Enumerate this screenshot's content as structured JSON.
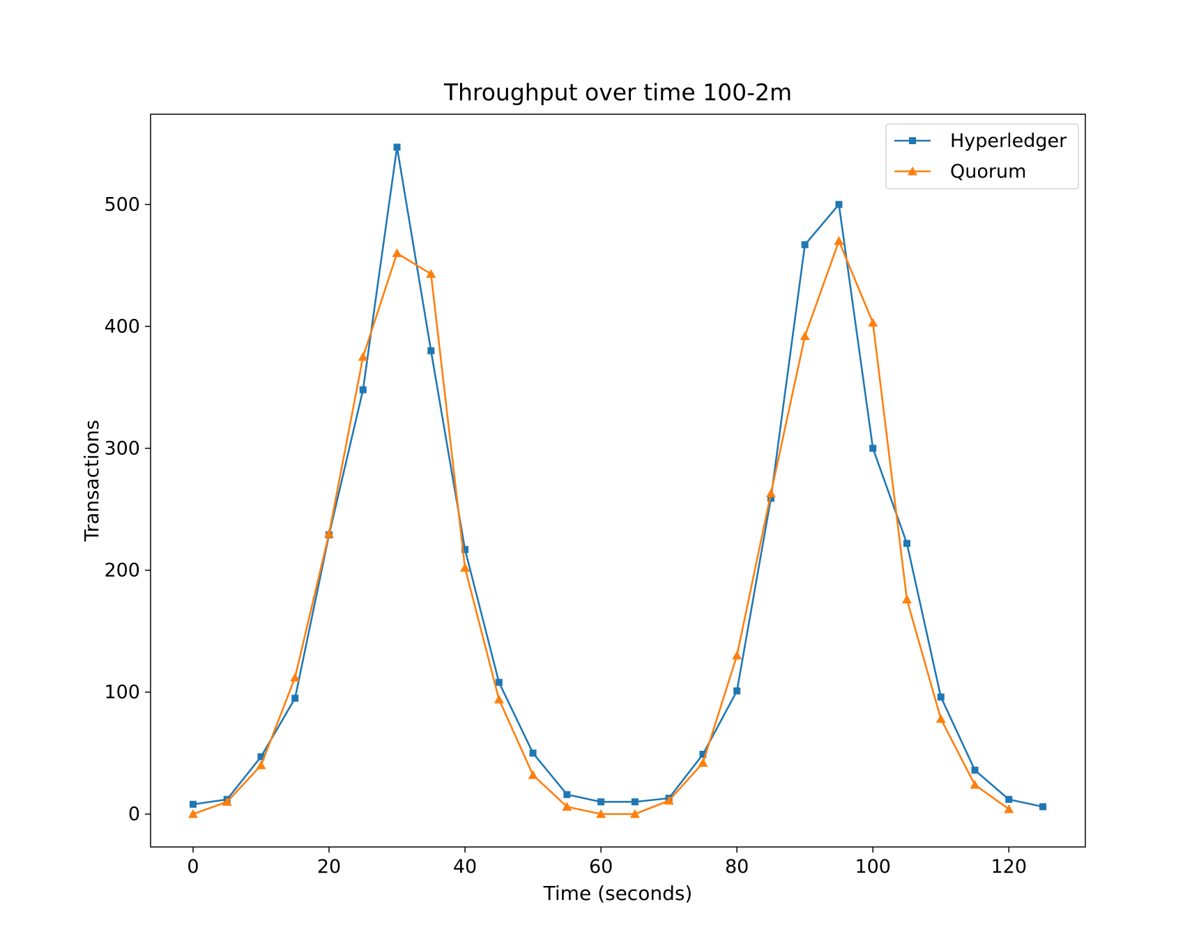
{
  "chart_data": {
    "type": "line",
    "title": "Throughput over time 100-2m",
    "xlabel": "Time (seconds)",
    "ylabel": "Transactions",
    "xlim": [
      -6.25,
      131.25
    ],
    "ylim": [
      -27,
      574
    ],
    "xticks": [
      0,
      20,
      40,
      60,
      80,
      100,
      120
    ],
    "yticks": [
      0,
      100,
      200,
      300,
      400,
      500
    ],
    "grid": false,
    "legend": "top-right",
    "series": [
      {
        "name": "Hyperledger",
        "color": "#1f77b4",
        "marker": "square",
        "x": [
          0,
          5,
          10,
          15,
          20,
          25,
          30,
          35,
          40,
          45,
          50,
          55,
          60,
          65,
          70,
          75,
          80,
          85,
          90,
          95,
          100,
          105,
          110,
          115,
          120,
          125
        ],
        "y": [
          8,
          12,
          47,
          95,
          229,
          348,
          547,
          380,
          217,
          108,
          50,
          16,
          10,
          10,
          13,
          49,
          101,
          259,
          467,
          500,
          300,
          222,
          96,
          36,
          12,
          6
        ]
      },
      {
        "name": "Quorum",
        "color": "#ff7f0e",
        "marker": "triangle",
        "x": [
          0,
          5,
          10,
          15,
          20,
          25,
          30,
          35,
          40,
          45,
          50,
          55,
          60,
          65,
          70,
          75,
          80,
          85,
          90,
          95,
          100,
          105,
          110,
          115,
          120
        ],
        "y": [
          0,
          10,
          40,
          112,
          230,
          375,
          460,
          443,
          202,
          94,
          32,
          6,
          0,
          0,
          11,
          42,
          130,
          263,
          392,
          470,
          403,
          176,
          78,
          24,
          4
        ]
      }
    ]
  }
}
